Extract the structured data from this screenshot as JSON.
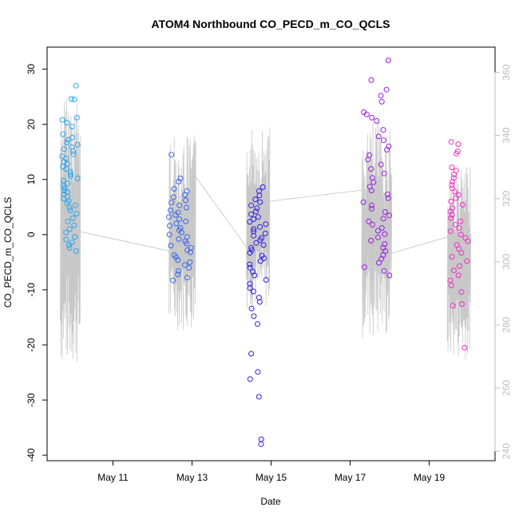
{
  "chart_data": {
    "type": "scatter",
    "title": "ATOM4 Northbound CO_PECD_m_CO_QCLS",
    "xlabel": "Date",
    "ylabel": "CO_PECD_m_CO_QCLS",
    "x_axis": {
      "type": "date",
      "range": [
        "2016-05-09T08:00",
        "2016-05-20T16:00"
      ],
      "ticks": [
        "May 11",
        "May 13",
        "May 15",
        "May 17",
        "May 19"
      ],
      "tick_dates": [
        "2016-05-11",
        "2016-05-13",
        "2016-05-15",
        "2016-05-17",
        "2016-05-19"
      ]
    },
    "y_axis_left": {
      "range": [
        -41,
        34
      ],
      "ticks": [
        "-40",
        "-30",
        "-20",
        "-10",
        "0",
        "10",
        "20",
        "30"
      ]
    },
    "y_axis_right": {
      "range": [
        237,
        368
      ],
      "ticks": [
        "240",
        "260",
        "280",
        "300",
        "320",
        "340",
        "360"
      ],
      "color": "#bbbbbb"
    },
    "grid": false,
    "legend": "none",
    "point_color_gradient": [
      "#29a8ef",
      "#2f1ee6",
      "#9a1ee6",
      "#f22ec8"
    ],
    "secondary_line_color": "#c8c8c8",
    "series": [
      {
        "marker": "open-circle",
        "clusters": [
          {
            "date": "2016-05-09T22:00",
            "width_hours": 10,
            "color": "#29a8ef",
            "values": [
              27,
              24.5,
              24.6,
              21.2,
              20.8,
              20.3,
              19.6,
              18.2,
              17.6,
              17.2,
              16.7,
              16.3,
              15.9,
              15.5,
              15.1,
              14.6,
              14.2,
              13.8,
              13.2,
              12.8,
              12.3,
              11.9,
              11.4,
              11.0,
              10.6,
              10.2,
              9.8,
              9.3,
              8.9,
              8.5,
              8.0,
              7.7,
              7.3,
              6.9,
              6.5,
              6.1,
              5.7,
              5.3,
              4.9,
              4.4,
              3.8,
              3.0,
              2.4,
              1.7,
              1.0,
              0.4,
              -0.4,
              -0.9,
              -1.4,
              -1.9,
              -2.4,
              -3.0
            ]
          },
          {
            "date": "2016-05-12T17:00",
            "width_hours": 14,
            "color": "#3b66ea",
            "values": [
              14.5,
              10.2,
              9.6,
              8.3,
              7.9,
              7.2,
              6.8,
              6.2,
              5.8,
              5.3,
              4.9,
              4.4,
              4.0,
              3.6,
              3.2,
              2.8,
              2.4,
              2.0,
              1.6,
              1.2,
              0.8,
              0.4,
              0.0,
              -0.4,
              -0.8,
              -1.2,
              -1.6,
              -2.0,
              -2.4,
              -2.8,
              -3.2,
              -3.7,
              -4.1,
              -4.6,
              -5.0,
              -5.5,
              -6.0,
              -6.6,
              -7.2,
              -7.8,
              -8.3
            ]
          },
          {
            "date": "2016-05-14T16:00",
            "width_hours": 10,
            "color": "#2f1ee6",
            "values": [
              8.6,
              7.9,
              7.1,
              6.4,
              5.9,
              5.3,
              4.8,
              4.2,
              3.7,
              3.2,
              2.8,
              2.3,
              1.9,
              1.4,
              1.0,
              0.6,
              0.2,
              -0.2,
              -0.6,
              -1.0,
              -1.5,
              -1.9,
              -2.4,
              -2.8,
              -3.3,
              -3.8,
              -4.3,
              -4.8,
              -5.4,
              -6.0,
              -6.7,
              -7.4,
              -8.2,
              -8.9,
              -9.7,
              -10.3,
              -11.4,
              -12.2,
              -13.4,
              -14.8,
              -16.2,
              -21.6,
              -24.9,
              -26.2,
              -29.4,
              -37.1,
              -38.0
            ]
          },
          {
            "date": "2016-05-17T16:00",
            "width_hours": 16,
            "color": "#9a1ee6",
            "values": [
              31.6,
              28.0,
              26.3,
              25.2,
              24.1,
              22.2,
              21.8,
              21.2,
              20.6,
              19.0,
              17.8,
              17.1,
              16.0,
              15.4,
              14.4,
              13.6,
              12.7,
              11.9,
              11.1,
              10.3,
              9.5,
              8.7,
              8.0,
              7.3,
              6.6,
              5.9,
              5.3,
              4.7,
              4.1,
              3.5,
              2.9,
              2.4,
              1.8,
              1.2,
              0.7,
              0.1,
              -0.5,
              -1.1,
              -1.7,
              -2.4,
              -3.0,
              -3.7,
              -4.4,
              -5.1,
              -5.9,
              -6.6,
              -7.4
            ]
          },
          {
            "date": "2016-05-19T18:00",
            "width_hours": 12,
            "color": "#f22ec8",
            "values": [
              16.8,
              16.4,
              15.1,
              14.7,
              12.2,
              11.6,
              10.9,
              10.3,
              9.6,
              9.0,
              8.4,
              7.8,
              7.2,
              6.6,
              6.0,
              5.4,
              4.8,
              4.2,
              3.6,
              3.0,
              2.4,
              1.8,
              1.2,
              0.6,
              0.0,
              -0.6,
              -1.2,
              -1.9,
              -2.6,
              -3.3,
              -4.0,
              -4.8,
              -5.7,
              -6.5,
              -7.4,
              -8.3,
              -9.2,
              -10.4,
              -12.6,
              -12.9,
              -20.5
            ]
          }
        ]
      },
      {
        "axis": "right",
        "style": "thin-line",
        "clusters": [
          {
            "date": "2016-05-09T22:00",
            "width_hours": 12,
            "low": 267,
            "high": 353
          },
          {
            "date": "2016-05-12T18:00",
            "width_hours": 16,
            "low": 278,
            "high": 340
          },
          {
            "date": "2016-05-14T16:00",
            "width_hours": 14,
            "low": 285,
            "high": 343
          },
          {
            "date": "2016-05-17T16:00",
            "width_hours": 18,
            "low": 275,
            "high": 345
          },
          {
            "date": "2016-05-19T18:00",
            "width_hours": 14,
            "low": 269,
            "high": 330
          }
        ],
        "connectors": [
          [
            [
              "2016-05-10T00:00",
              310
            ],
            [
              "2016-05-12T14:00",
              303
            ]
          ],
          [
            [
              "2016-05-12T22:00",
              330
            ],
            [
              "2016-05-14T10:00",
              304
            ]
          ],
          [
            [
              "2016-05-14T20:00",
              319
            ],
            [
              "2016-05-17T12:00",
              323
            ]
          ],
          [
            [
              "2016-05-17T20:00",
              302
            ],
            [
              "2016-05-19T12:00",
              308
            ]
          ]
        ]
      }
    ]
  }
}
